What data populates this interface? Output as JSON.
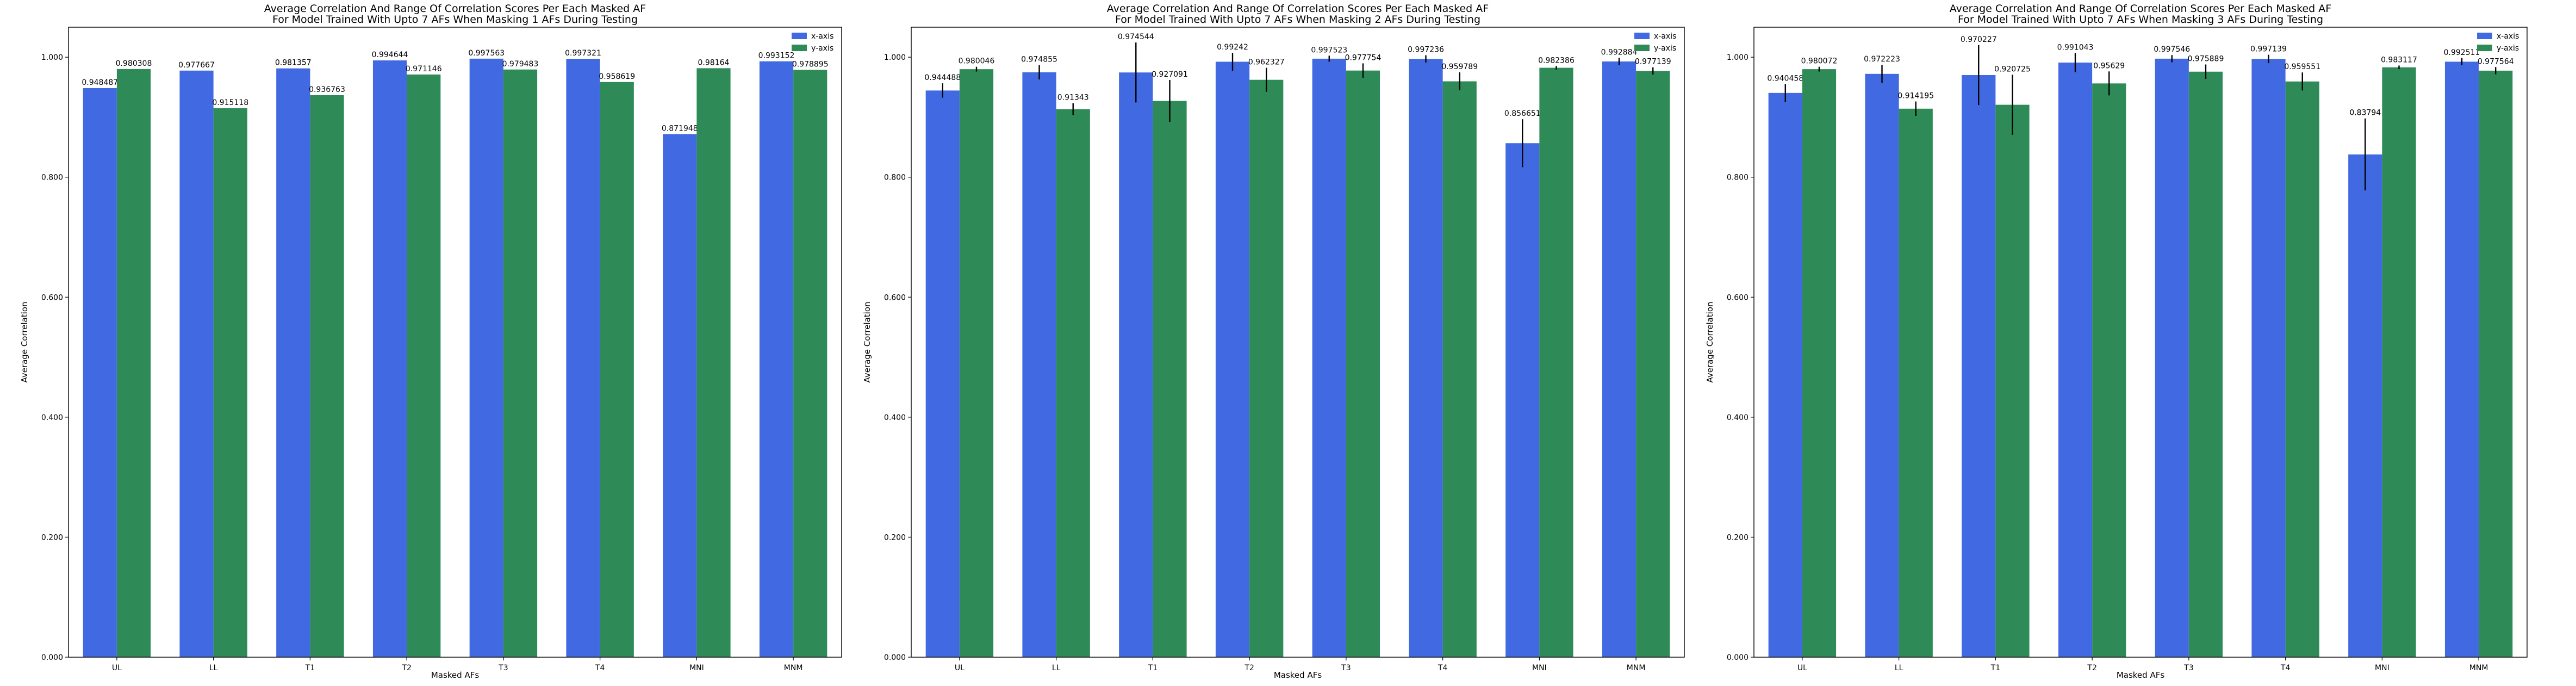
{
  "colors": {
    "x_axis": "#4169E1",
    "y_axis": "#2E8B57",
    "error_bar": "#000000"
  },
  "chart_data": [
    {
      "type": "bar",
      "title": "Average Correlation And Range Of Correlation Scores Per Each Masked AF",
      "subtitle": "For Model Trained With Upto 7 AFs When Masking 1 AFs During Testing",
      "xlabel": "Masked AFs",
      "ylabel": "Average Correlation",
      "ylim": [
        0,
        1.05
      ],
      "yticks": [
        "0.000",
        "0.200",
        "0.400",
        "0.600",
        "0.800",
        "1.000"
      ],
      "legend": "top-right",
      "categories": [
        "UL",
        "LL",
        "T1",
        "T2",
        "T3",
        "T4",
        "MNI",
        "MNM"
      ],
      "series": [
        {
          "name": "x-axis",
          "values": [
            0.948487,
            0.977667,
            0.981357,
            0.994644,
            0.997563,
            0.997321,
            0.871948,
            0.993152
          ],
          "labels": [
            "0.948487",
            "0.977667",
            "0.981357",
            "0.994644",
            "0.997563",
            "0.997321",
            "0.871948",
            "0.993152"
          ],
          "error": [
            0,
            0,
            0,
            0,
            0,
            0,
            0,
            0
          ]
        },
        {
          "name": "y-axis",
          "values": [
            0.980308,
            0.915118,
            0.936763,
            0.971146,
            0.979483,
            0.958619,
            0.98164,
            0.978895
          ],
          "labels": [
            "0.980308",
            "0.915118",
            "0.936763",
            "0.971146",
            "0.979483",
            "0.958619",
            "0.98164",
            "0.978895"
          ],
          "error": [
            0,
            0,
            0,
            0,
            0,
            0,
            0,
            0
          ]
        }
      ]
    },
    {
      "type": "bar",
      "title": "Average Correlation And Range Of Correlation Scores Per Each Masked AF",
      "subtitle": "For Model Trained With Upto 7 AFs When Masking 2 AFs During Testing",
      "xlabel": "Masked AFs",
      "ylabel": "Average Correlation",
      "ylim": [
        0,
        1.05
      ],
      "yticks": [
        "0.000",
        "0.200",
        "0.400",
        "0.600",
        "0.800",
        "1.000"
      ],
      "legend": "top-right",
      "categories": [
        "UL",
        "LL",
        "T1",
        "T2",
        "T3",
        "T4",
        "MNI",
        "MNM"
      ],
      "series": [
        {
          "name": "x-axis",
          "values": [
            0.944488,
            0.974855,
            0.974544,
            0.99242,
            0.997523,
            0.997236,
            0.856651,
            0.992884
          ],
          "labels": [
            "0.944488",
            "0.974855",
            "0.974544",
            "0.99242",
            "0.997523",
            "0.997236",
            "0.856651",
            "0.992884"
          ],
          "error": [
            0.012,
            0.012,
            0.05,
            0.015,
            0.005,
            0.006,
            0.04,
            0.006
          ]
        },
        {
          "name": "y-axis",
          "values": [
            0.980046,
            0.91343,
            0.927091,
            0.962327,
            0.977754,
            0.959789,
            0.982386,
            0.977139
          ],
          "labels": [
            "0.980046",
            "0.91343",
            "0.927091",
            "0.962327",
            "0.977754",
            "0.959789",
            "0.982386",
            "0.977139"
          ],
          "error": [
            0.004,
            0.01,
            0.035,
            0.02,
            0.012,
            0.015,
            0.003,
            0.006
          ]
        }
      ]
    },
    {
      "type": "bar",
      "title": "Average Correlation And Range Of Correlation Scores Per Each Masked AF",
      "subtitle": "For Model Trained With Upto 7 AFs When Masking 3 AFs During Testing",
      "xlabel": "Masked AFs",
      "ylabel": "Average Correlation",
      "ylim": [
        0,
        1.05
      ],
      "yticks": [
        "0.000",
        "0.200",
        "0.400",
        "0.600",
        "0.800",
        "1.000"
      ],
      "legend": "top-right",
      "categories": [
        "UL",
        "LL",
        "T1",
        "T2",
        "T3",
        "T4",
        "MNI",
        "MNM"
      ],
      "series": [
        {
          "name": "x-axis",
          "values": [
            0.940458,
            0.972223,
            0.970227,
            0.991043,
            0.997546,
            0.997139,
            0.83794,
            0.992511
          ],
          "labels": [
            "0.940458",
            "0.972223",
            "0.970227",
            "0.991043",
            "0.997546",
            "0.997139",
            "0.83794",
            "0.992511"
          ],
          "error": [
            0.015,
            0.015,
            0.05,
            0.016,
            0.006,
            0.007,
            0.06,
            0.006
          ]
        },
        {
          "name": "y-axis",
          "values": [
            0.980072,
            0.914195,
            0.920725,
            0.95629,
            0.975889,
            0.959551,
            0.983117,
            0.977564
          ],
          "labels": [
            "0.980072",
            "0.914195",
            "0.920725",
            "0.95629",
            "0.975889",
            "0.959551",
            "0.983117",
            "0.977564"
          ],
          "error": [
            0.004,
            0.012,
            0.05,
            0.02,
            0.012,
            0.015,
            0.003,
            0.006
          ]
        }
      ]
    }
  ]
}
